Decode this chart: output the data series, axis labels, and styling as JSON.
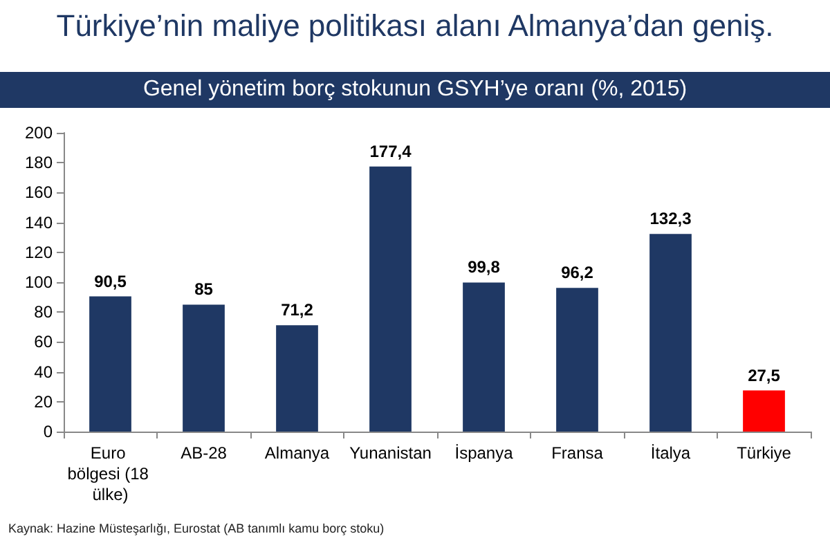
{
  "chart_data": {
    "type": "bar",
    "title": "Türkiye’nin maliye politikası alanı Almanya’dan geniş.",
    "subtitle": "Genel yönetim borç stokunun GSYH’ye oranı (%, 2015)",
    "categories": [
      "Euro bölgesi (18 ülke)",
      "AB-28",
      "Almanya",
      "Yunanistan",
      "İspanya",
      "Fransa",
      "İtalya",
      "Türkiye"
    ],
    "values": [
      90.5,
      85,
      71.2,
      177.4,
      99.8,
      96.2,
      132.3,
      27.5
    ],
    "colors": [
      "#1f3864",
      "#1f3864",
      "#1f3864",
      "#1f3864",
      "#1f3864",
      "#1f3864",
      "#1f3864",
      "#ff0000"
    ],
    "value_labels": [
      "90,5",
      "85",
      "71,2",
      "177,4",
      "99,8",
      "96,2",
      "132,3",
      "27,5"
    ],
    "ylim": [
      0,
      200
    ],
    "yticks": [
      0,
      20,
      40,
      60,
      80,
      100,
      120,
      140,
      160,
      180,
      200
    ],
    "grid": false,
    "annotations": [
      "Kaynak: Hazine Müsteşarlığı, Eurostat (AB tanımlı kamu borç stoku)"
    ]
  }
}
